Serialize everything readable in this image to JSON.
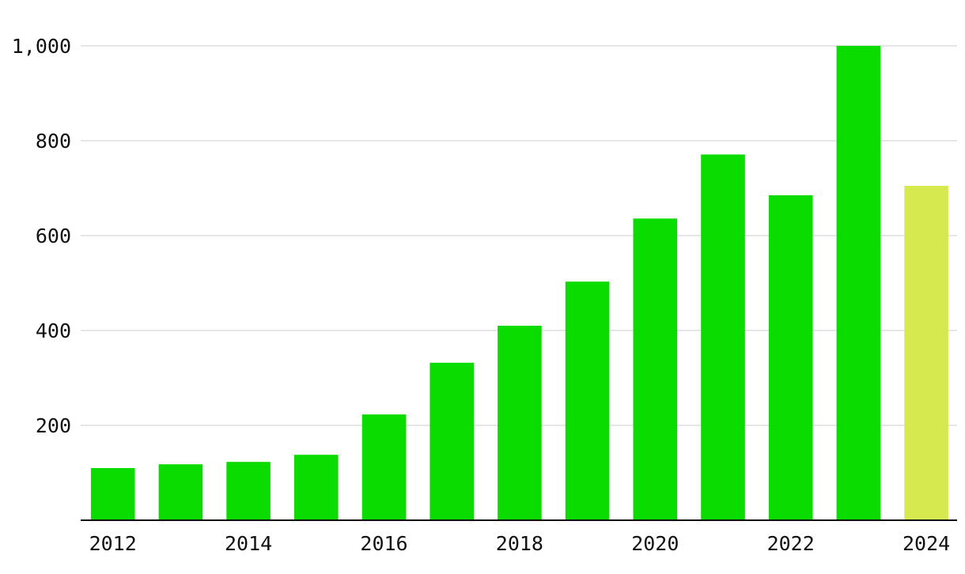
{
  "chart_data": {
    "type": "bar",
    "categories": [
      "2012",
      "2013",
      "2014",
      "2015",
      "2016",
      "2017",
      "2018",
      "2019",
      "2020",
      "2021",
      "2022",
      "2023",
      "2024"
    ],
    "values": [
      110,
      118,
      123,
      138,
      223,
      332,
      410,
      503,
      636,
      771,
      685,
      1000,
      705
    ],
    "bar_colors": [
      "#0adc00",
      "#0adc00",
      "#0adc00",
      "#0adc00",
      "#0adc00",
      "#0adc00",
      "#0adc00",
      "#0adc00",
      "#0adc00",
      "#0adc00",
      "#0adc00",
      "#0adc00",
      "#d6ea50"
    ],
    "title": "",
    "xlabel": "",
    "ylabel": "",
    "ylim": [
      0,
      1000
    ],
    "y_ticks": [
      200,
      400,
      600,
      800,
      1000
    ],
    "y_tick_labels": [
      "200",
      "400",
      "600",
      "800",
      "1,000"
    ],
    "x_tick_labels": [
      "2012",
      "2014",
      "2016",
      "2018",
      "2020",
      "2022",
      "2024"
    ],
    "grid": true,
    "legend": "none"
  }
}
